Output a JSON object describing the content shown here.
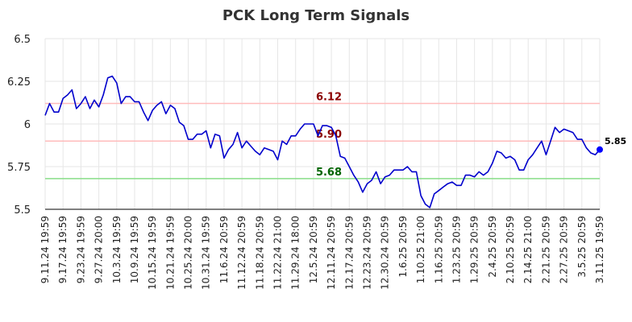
{
  "chart_data": {
    "type": "line",
    "title": "PCK Long Term Signals",
    "xlabel": "",
    "ylabel": "",
    "ylim": [
      5.5,
      6.5
    ],
    "yticks": [
      5.5,
      5.75,
      6,
      6.25,
      6.5
    ],
    "ytick_labels": [
      "5.5",
      "5.75",
      "6",
      "6.25",
      "6.5"
    ],
    "xtick_labels": [
      "9.11.24 19:59",
      "9.17.24 19:59",
      "9.23.24 19:59",
      "9.27.24 20:00",
      "10.3.24 19:59",
      "10.9.24 19:59",
      "10.15.24 19:59",
      "10.21.24 19:59",
      "10.25.24 20:00",
      "10.31.24 19:59",
      "11.6.24 20:59",
      "11.12.24 20:59",
      "11.18.24 20:59",
      "11.22.24 21:00",
      "11.29.24 18:00",
      "12.5.24 20:59",
      "12.11.24 20:59",
      "12.17.24 20:59",
      "12.23.24 20:59",
      "12.30.24 20:59",
      "1.6.25 20:59",
      "1.10.25 21:00",
      "1.16.25 20:59",
      "1.23.25 20:59",
      "1.29.25 20:59",
      "2.4.25 20:59",
      "2.10.25 20:59",
      "2.14.25 21:00",
      "2.21.25 20:59",
      "2.27.25 20:59",
      "3.5.25 20:59",
      "3.11.25 19:59"
    ],
    "grid": true,
    "series": [
      {
        "name": "",
        "color": "#0000cc",
        "values": [
          6.05,
          6.12,
          6.07,
          6.07,
          6.15,
          6.17,
          6.2,
          6.09,
          6.12,
          6.16,
          6.09,
          6.14,
          6.1,
          6.17,
          6.27,
          6.28,
          6.24,
          6.12,
          6.16,
          6.16,
          6.13,
          6.13,
          6.07,
          6.02,
          6.08,
          6.11,
          6.13,
          6.06,
          6.11,
          6.09,
          6.01,
          5.99,
          5.91,
          5.91,
          5.94,
          5.94,
          5.96,
          5.86,
          5.94,
          5.93,
          5.8,
          5.85,
          5.88,
          5.95,
          5.86,
          5.9,
          5.87,
          5.84,
          5.82,
          5.86,
          5.85,
          5.84,
          5.79,
          5.9,
          5.88,
          5.93,
          5.93,
          5.97,
          6.0,
          6.0,
          6.0,
          5.93,
          5.99,
          5.99,
          5.98,
          5.93,
          5.81,
          5.8,
          5.75,
          5.7,
          5.66,
          5.6,
          5.65,
          5.67,
          5.72,
          5.65,
          5.69,
          5.7,
          5.73,
          5.73,
          5.73,
          5.75,
          5.72,
          5.72,
          5.58,
          5.53,
          5.51,
          5.59,
          5.61,
          5.63,
          5.65,
          5.66,
          5.64,
          5.64,
          5.7,
          5.7,
          5.69,
          5.72,
          5.7,
          5.72,
          5.77,
          5.84,
          5.83,
          5.8,
          5.81,
          5.79,
          5.73,
          5.73,
          5.79,
          5.82,
          5.86,
          5.9,
          5.82,
          5.9,
          5.98,
          5.95,
          5.97,
          5.96,
          5.95,
          5.91,
          5.91,
          5.86,
          5.83,
          5.82,
          5.85
        ]
      }
    ],
    "reference_lines": [
      {
        "value": 6.12,
        "label": "6.12",
        "line_color": "#ffbbbb",
        "label_color": "#8b0000"
      },
      {
        "value": 5.9,
        "label": "5.90",
        "line_color": "#ffbbbb",
        "label_color": "#8b0000"
      },
      {
        "value": 5.68,
        "label": "5.68",
        "line_color": "#88dd88",
        "label_color": "#006400"
      }
    ],
    "last_value": {
      "value": 5.85,
      "label": "5.85",
      "color": "#0000ff"
    }
  }
}
